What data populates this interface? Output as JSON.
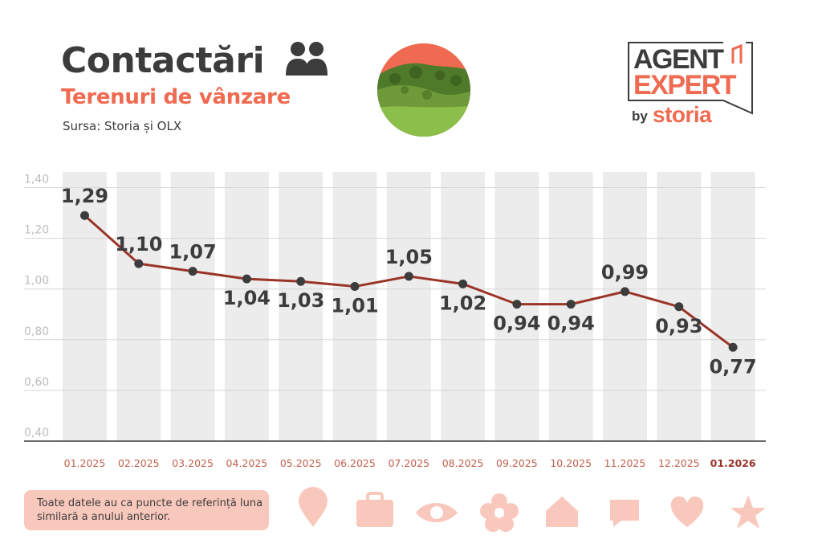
{
  "header": {
    "title": "Contactări",
    "subtitle": "Terenuri de vânzare",
    "source": "Sursa: Storia și OLX"
  },
  "logo": {
    "line1": "AGENT",
    "line2": "EXPERT",
    "by": "by",
    "brand": "storia"
  },
  "note": {
    "text": "Toate datele au ca puncte de referință luna similară a anului anterior."
  },
  "colors": {
    "accent": "#ef6a50",
    "line": "#9a3428",
    "dark": "#3c3c3c",
    "column": "#ececec",
    "icon": "#f9c8bd"
  },
  "icons": [
    "location-pin-icon",
    "briefcase-icon",
    "eye-icon",
    "flower-icon",
    "house-icon",
    "chat-bubble-icon",
    "heart-icon",
    "star-icon"
  ],
  "chart_data": {
    "type": "line",
    "title": "Contactări",
    "subtitle": "Terenuri de vânzare",
    "categories": [
      "01.2025",
      "02.2025",
      "03.2025",
      "04.2025",
      "05.2025",
      "06.2025",
      "07.2025",
      "08.2025",
      "09.2025",
      "10.2025",
      "11.2025",
      "12.2025",
      "01.2026"
    ],
    "values": [
      1.29,
      1.1,
      1.07,
      1.04,
      1.03,
      1.01,
      1.05,
      1.02,
      0.94,
      0.94,
      0.99,
      0.93,
      0.77
    ],
    "value_labels": [
      "1,29",
      "1,10",
      "1,07",
      "1,04",
      "1,03",
      "1,01",
      "1,05",
      "1,02",
      "0,94",
      "0,94",
      "0,99",
      "0,93",
      "0,77"
    ],
    "label_position": [
      "above",
      "above",
      "above",
      "below",
      "below",
      "below",
      "above",
      "below",
      "below",
      "below",
      "above",
      "below",
      "below"
    ],
    "highlight_category": "01.2026",
    "yticks": [
      1.4,
      1.2,
      1.0,
      0.8,
      0.6,
      0.4
    ],
    "ytick_labels": [
      "1,40",
      "1,20",
      "1,00",
      "0,80",
      "0,60",
      "0,40"
    ],
    "ylim": [
      0.4,
      1.4
    ],
    "xlabel": "",
    "ylabel": "",
    "grid": true
  }
}
